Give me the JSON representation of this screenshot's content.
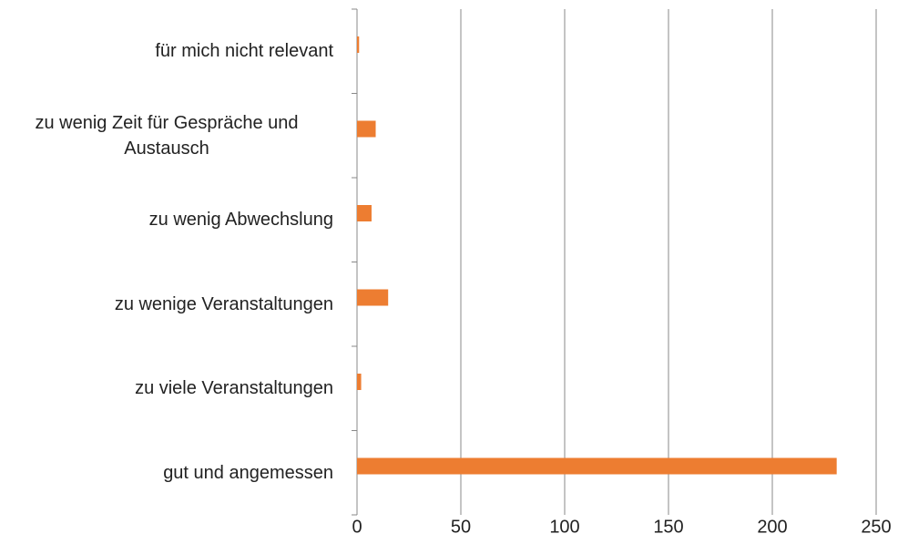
{
  "chart_data": {
    "type": "hbar",
    "categories": [
      "für mich nicht relevant",
      "zu wenig Zeit für Gespräche und Austausch",
      "zu wenig Abwechslung",
      "zu wenige Veranstaltungen",
      "zu viele Veranstaltungen",
      "gut und angemessen"
    ],
    "values": [
      1,
      9,
      7,
      15,
      2,
      231
    ],
    "color": "#ed7d31",
    "xlim": [
      0,
      250
    ],
    "xticks": [
      0,
      50,
      100,
      150,
      200,
      250
    ],
    "grid": true
  }
}
